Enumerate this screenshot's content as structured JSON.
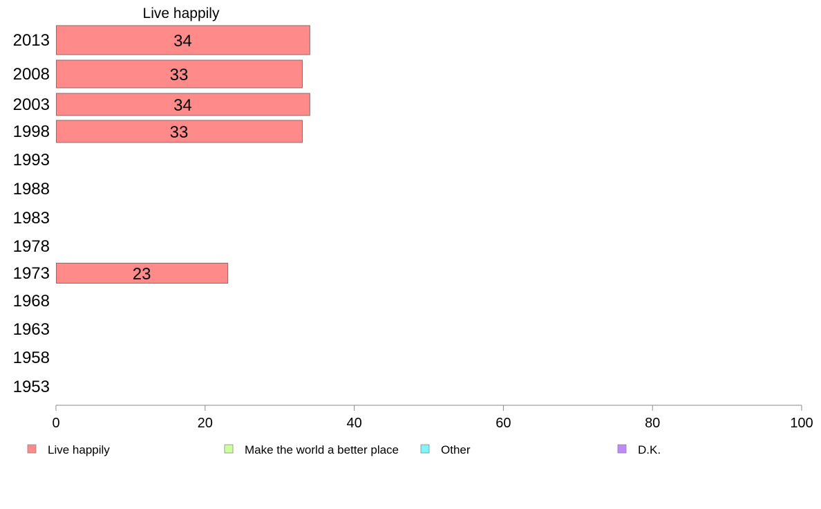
{
  "chart_data": {
    "type": "bar",
    "orientation": "horizontal",
    "panel_title": "Live happily",
    "categories": [
      "2013",
      "2008",
      "2003",
      "1998",
      "1993",
      "1988",
      "1983",
      "1978",
      "1973",
      "1968",
      "1963",
      "1958",
      "1953"
    ],
    "series": [
      {
        "name": "Live happily",
        "values": [
          34,
          33,
          34,
          33,
          null,
          null,
          null,
          null,
          23,
          null,
          null,
          null,
          null
        ]
      }
    ],
    "bar_labels": [
      "34",
      "33",
      "34",
      "33",
      "",
      "",
      "",
      "",
      "23",
      "",
      "",
      "",
      ""
    ],
    "xlim": [
      0,
      100
    ],
    "xticks": [
      0,
      20,
      40,
      60,
      80,
      100
    ],
    "xtick_labels": [
      "0",
      "20",
      "40",
      "60",
      "80",
      "100"
    ],
    "legend": [
      {
        "label": "Live happily",
        "color": "#ff8a8a"
      },
      {
        "label": "Make the world a better place",
        "color": "#ccff99"
      },
      {
        "label": "Other",
        "color": "#7ff5f5"
      },
      {
        "label": "D.K.",
        "color": "#c08aff"
      }
    ],
    "legend_position": "bottom",
    "colors": {
      "bar": "#ff8a8a",
      "bar_stroke": "#8c6a6a",
      "axis": "#888888"
    }
  }
}
